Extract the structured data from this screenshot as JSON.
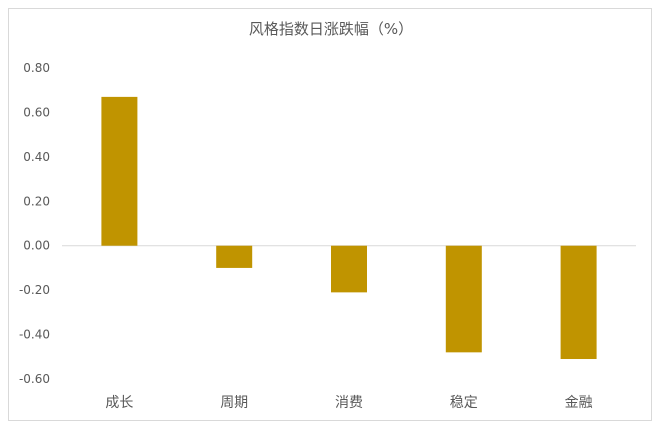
{
  "chart_data": {
    "type": "bar",
    "title": "风格指数日涨跌幅（%）",
    "categories": [
      "成长",
      "周期",
      "消费",
      "稳定",
      "金融"
    ],
    "values": [
      0.67,
      -0.1,
      -0.21,
      -0.48,
      -0.51
    ],
    "ylim": [
      -0.6,
      0.8
    ],
    "yticks": [
      "0.80",
      "0.60",
      "0.40",
      "0.20",
      "0.00",
      "-0.20",
      "-0.40",
      "-0.60"
    ],
    "grid": false,
    "legend": "none",
    "bar_color": "#c09400",
    "axis_color": "#d9d9d9",
    "text_color": "#595959"
  }
}
